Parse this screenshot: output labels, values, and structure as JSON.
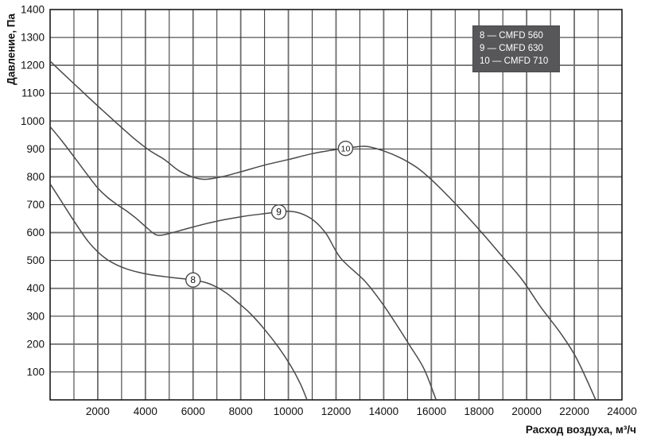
{
  "chart_data": {
    "type": "line",
    "title": "",
    "xlabel": "Расход воздуха, м³/ч",
    "ylabel": "Давление, Па",
    "xlim": [
      0,
      24000
    ],
    "ylim": [
      0,
      1400
    ],
    "grid": true,
    "x_grid_step": 1000,
    "y_grid_step": 100,
    "x_tick_labels": [
      2000,
      4000,
      6000,
      8000,
      10000,
      12000,
      14000,
      16000,
      18000,
      20000,
      22000,
      24000
    ],
    "y_tick_labels": [
      100,
      200,
      300,
      400,
      500,
      600,
      700,
      800,
      900,
      1000,
      1100,
      1200,
      1300,
      1400
    ],
    "legend_position": "top-right-inside",
    "colors": {
      "curve": "#4a4a4a",
      "grid_major": "#6e6e6e",
      "grid_minor": "#2e2e2e",
      "frame": "#1a1a1a",
      "legend_bg": "#57575a",
      "legend_text": "#ffffff",
      "text": "#111111"
    },
    "series": [
      {
        "id": "8",
        "name": "CMFD 560",
        "legend_text": "8 — CMFD 560",
        "marker": {
          "label": "8",
          "x": 6000,
          "y": 430
        },
        "points": [
          [
            0,
            775
          ],
          [
            400,
            722
          ],
          [
            800,
            668
          ],
          [
            1200,
            616
          ],
          [
            1600,
            568
          ],
          [
            2000,
            531
          ],
          [
            2400,
            503
          ],
          [
            2800,
            484
          ],
          [
            3200,
            470
          ],
          [
            3600,
            460
          ],
          [
            4200,
            449
          ],
          [
            5000,
            440
          ],
          [
            6000,
            430
          ],
          [
            6600,
            419
          ],
          [
            7000,
            404
          ],
          [
            7400,
            383
          ],
          [
            7800,
            355
          ],
          [
            8400,
            310
          ],
          [
            9000,
            253
          ],
          [
            9600,
            187
          ],
          [
            10100,
            122
          ],
          [
            10500,
            58
          ],
          [
            10780,
            0
          ]
        ]
      },
      {
        "id": "9",
        "name": "CMFD 630",
        "legend_text": "9 — CMFD 630",
        "marker": {
          "label": "9",
          "x": 9600,
          "y": 674
        },
        "points": [
          [
            0,
            980
          ],
          [
            500,
            928
          ],
          [
            1000,
            872
          ],
          [
            1500,
            815
          ],
          [
            2000,
            760
          ],
          [
            2400,
            727
          ],
          [
            2800,
            701
          ],
          [
            3200,
            678
          ],
          [
            3600,
            652
          ],
          [
            4000,
            622
          ],
          [
            4400,
            594
          ],
          [
            4700,
            591
          ],
          [
            5100,
            599
          ],
          [
            5700,
            613
          ],
          [
            6500,
            631
          ],
          [
            7300,
            646
          ],
          [
            8100,
            658
          ],
          [
            8900,
            667
          ],
          [
            9600,
            674
          ],
          [
            10100,
            676
          ],
          [
            10600,
            666
          ],
          [
            11100,
            641
          ],
          [
            11600,
            594
          ],
          [
            12200,
            508
          ],
          [
            13200,
            427
          ],
          [
            13900,
            351
          ],
          [
            14500,
            275
          ],
          [
            15100,
            194
          ],
          [
            15700,
            110
          ],
          [
            16200,
            0
          ]
        ]
      },
      {
        "id": "10",
        "name": "CMFD 710",
        "legend_text": "10 — CMFD 710",
        "marker": {
          "label": "10",
          "x": 12400,
          "y": 902
        },
        "points": [
          [
            0,
            1215
          ],
          [
            600,
            1166
          ],
          [
            1200,
            1118
          ],
          [
            1800,
            1070
          ],
          [
            2400,
            1023
          ],
          [
            3000,
            977
          ],
          [
            3600,
            932
          ],
          [
            4200,
            893
          ],
          [
            4800,
            862
          ],
          [
            5400,
            822
          ],
          [
            6000,
            799
          ],
          [
            6500,
            791
          ],
          [
            7200,
            800
          ],
          [
            8000,
            818
          ],
          [
            9000,
            842
          ],
          [
            10000,
            862
          ],
          [
            11000,
            883
          ],
          [
            12000,
            898
          ],
          [
            12700,
            906
          ],
          [
            13300,
            909
          ],
          [
            14000,
            893
          ],
          [
            14700,
            868
          ],
          [
            15400,
            833
          ],
          [
            16000,
            790
          ],
          [
            16600,
            740
          ],
          [
            17400,
            668
          ],
          [
            18200,
            592
          ],
          [
            19000,
            512
          ],
          [
            19800,
            432
          ],
          [
            20600,
            332
          ],
          [
            21400,
            242
          ],
          [
            22100,
            148
          ],
          [
            22900,
            0
          ]
        ]
      }
    ]
  }
}
